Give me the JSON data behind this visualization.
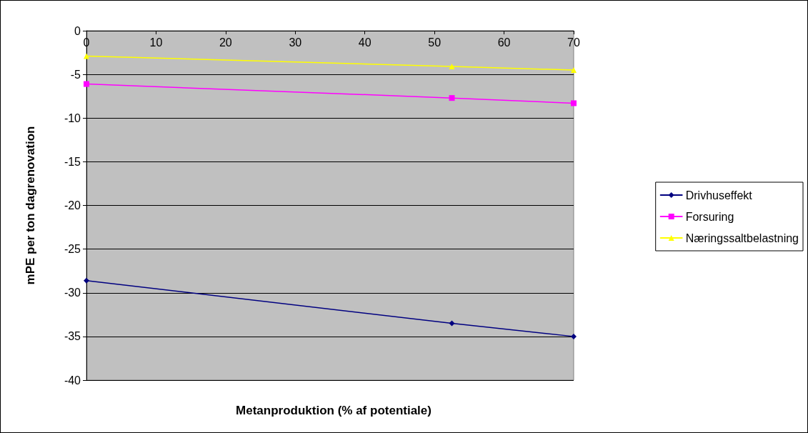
{
  "chart_data": {
    "type": "line",
    "xlabel": "Metanproduktion (% af potentiale)",
    "ylabel": "mPE per ton dagrenovation",
    "x": [
      0,
      52.5,
      70
    ],
    "series": [
      {
        "name": "Drivhuseffekt",
        "color": "#000080",
        "marker": "diamond",
        "values": [
          -28.6,
          -33.5,
          -35.0
        ]
      },
      {
        "name": "Forsuring",
        "color": "#ff00ff",
        "marker": "square",
        "values": [
          -6.1,
          -7.7,
          -8.3
        ]
      },
      {
        "name": "Næringssaltbelastning",
        "color": "#ffff00",
        "marker": "triangle",
        "values": [
          -2.9,
          -4.1,
          -4.5
        ]
      }
    ],
    "xlim": [
      0,
      70
    ],
    "xticks": [
      0,
      10,
      20,
      30,
      40,
      50,
      60,
      70
    ],
    "ylim": [
      -40,
      0
    ],
    "yticks": [
      -40,
      -35,
      -30,
      -25,
      -20,
      -15,
      -10,
      -5,
      0
    ],
    "grid": "y",
    "legend": "right"
  }
}
